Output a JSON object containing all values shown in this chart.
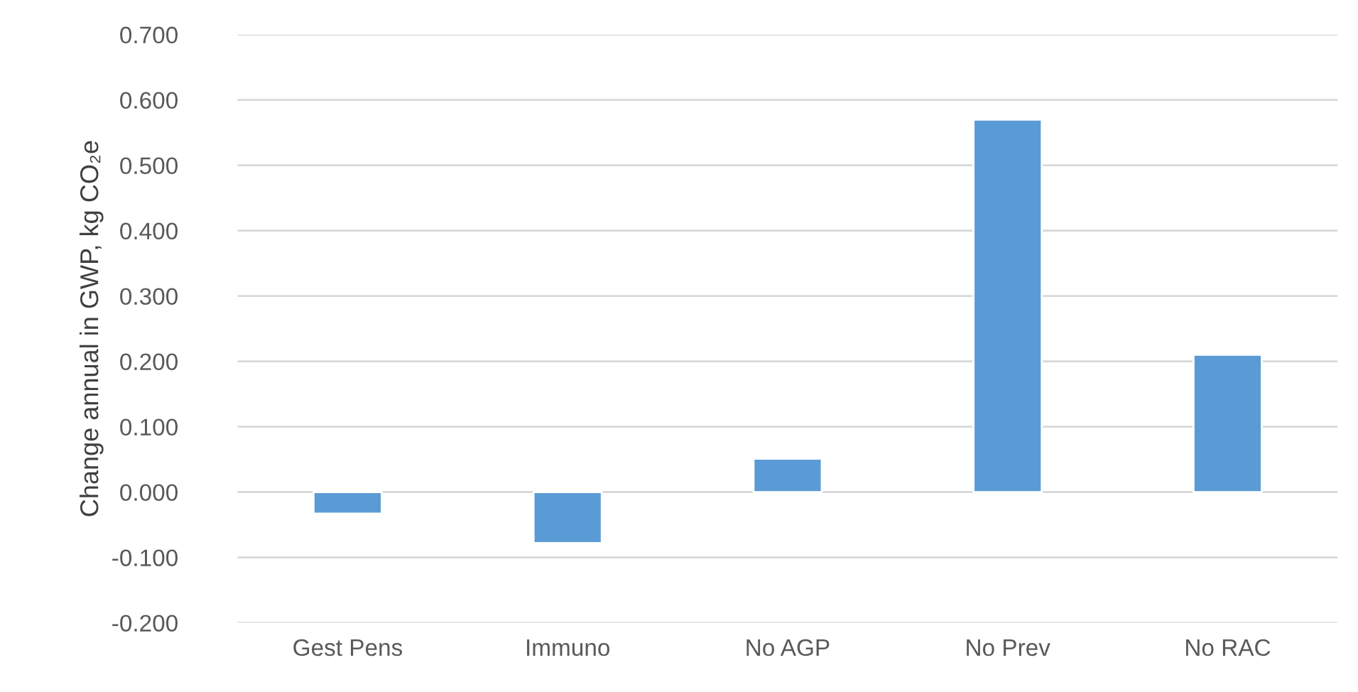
{
  "chart_data": {
    "type": "bar",
    "ylabel": "Change annual in GWP, kg CO₂e",
    "categories": [
      "Gest Pens",
      "Immuno",
      "No AGP",
      "No Prev",
      "No RAC"
    ],
    "values": [
      -0.033,
      -0.078,
      0.051,
      0.57,
      0.21
    ],
    "color": "#5b9bd5",
    "ylim": [
      -0.2,
      0.7
    ],
    "yticks": [
      {
        "value": -0.2,
        "label": "-0.200"
      },
      {
        "value": -0.1,
        "label": "-0.100"
      },
      {
        "value": 0,
        "label": "0.000"
      },
      {
        "value": 0.1,
        "label": "0.100"
      },
      {
        "value": 0.2,
        "label": "0.200"
      },
      {
        "value": 0.3,
        "label": "0.300"
      },
      {
        "value": 0.4,
        "label": "0.400"
      },
      {
        "value": 0.5,
        "label": "0.500"
      },
      {
        "value": 0.6,
        "label": "0.600"
      },
      {
        "value": 0.7,
        "label": "0.700"
      }
    ],
    "grid": "y"
  }
}
